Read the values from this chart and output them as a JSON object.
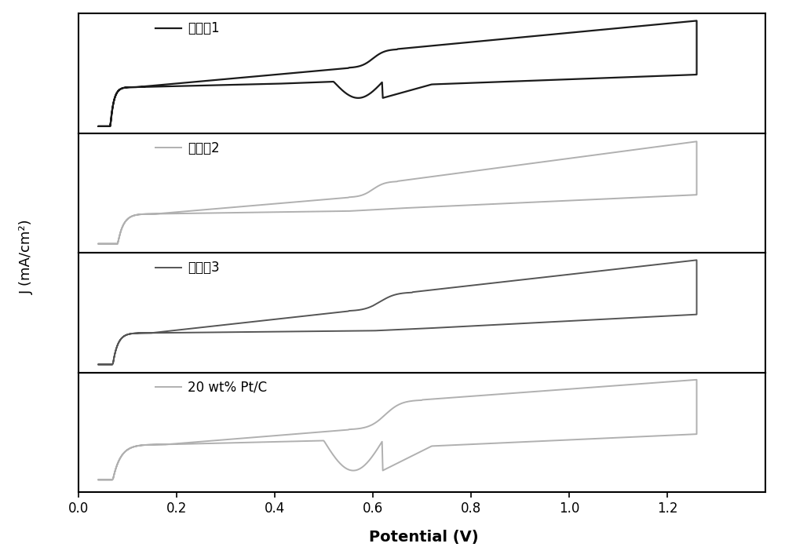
{
  "xlabel": "Potential (V)",
  "ylabel": "J (mA/cm²)",
  "xlim": [
    0.0,
    1.4
  ],
  "xticks": [
    0.0,
    0.2,
    0.4,
    0.6,
    0.8,
    1.0,
    1.2
  ],
  "panels": [
    {
      "label": "实施例1",
      "color": "#1a1a1a",
      "lw": 1.6
    },
    {
      "label": "实施例2",
      "color": "#b0b0b0",
      "lw": 1.4
    },
    {
      "label": "实施例3",
      "color": "#555555",
      "lw": 1.4
    },
    {
      "label": "20 wt% Pt/C",
      "color": "#b0b0b0",
      "lw": 1.4
    }
  ],
  "fig_width": 10.0,
  "fig_height": 6.97,
  "dpi": 100
}
